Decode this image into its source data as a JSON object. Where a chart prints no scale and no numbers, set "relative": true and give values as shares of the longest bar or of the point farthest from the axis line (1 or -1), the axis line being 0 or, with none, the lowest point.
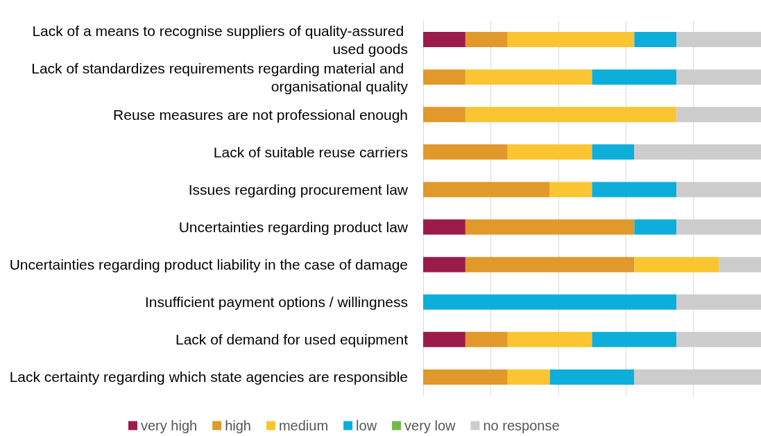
{
  "chart_data": {
    "type": "bar",
    "orientation": "horizontal",
    "stacked": true,
    "relative": true,
    "grid": "x",
    "legend": "bottom",
    "categories": [
      "Lack of a means to recognise suppliers of quality-assured used goods",
      "Lack of standardizes requirements regarding material and organisational quality",
      "Reuse measures are not professional enough",
      "Lack of suitable reuse carriers",
      "Issues regarding procurement law",
      "Uncertainties regarding product law",
      "Uncertainties regarding product liability in the case of damage",
      "Insufficient payment options / willingness",
      "Lack of demand for used equipment",
      "Lack certainty regarding which state agencies are responsible"
    ],
    "series": [
      {
        "name": "very high",
        "color": "#9b1b4a",
        "values": [
          0.125,
          0,
          0,
          0,
          0,
          0.125,
          0.125,
          0,
          0.125,
          0
        ]
      },
      {
        "name": "high",
        "color": "#e0992a",
        "values": [
          0.125,
          0.125,
          0.125,
          0.25,
          0.375,
          0.5,
          0.5,
          0,
          0.125,
          0.25
        ]
      },
      {
        "name": "medium",
        "color": "#fbc531",
        "values": [
          0.375,
          0.375,
          0.625,
          0.25,
          0.125,
          0,
          0.25,
          0,
          0.25,
          0.125
        ]
      },
      {
        "name": "low",
        "color": "#0eaedb",
        "values": [
          0.125,
          0.25,
          0,
          0.125,
          0.25,
          0.125,
          0,
          0.75,
          0.25,
          0.25
        ]
      },
      {
        "name": "very low",
        "color": "#70b94a",
        "values": [
          0,
          0,
          0,
          0,
          0,
          0,
          0,
          0,
          0,
          0
        ]
      },
      {
        "name": "no response",
        "color": "#cccccc",
        "values": [
          0.25,
          0.25,
          0.25,
          0.375,
          0.25,
          0.25,
          0.125,
          0.25,
          0.25,
          0.375
        ]
      }
    ]
  }
}
